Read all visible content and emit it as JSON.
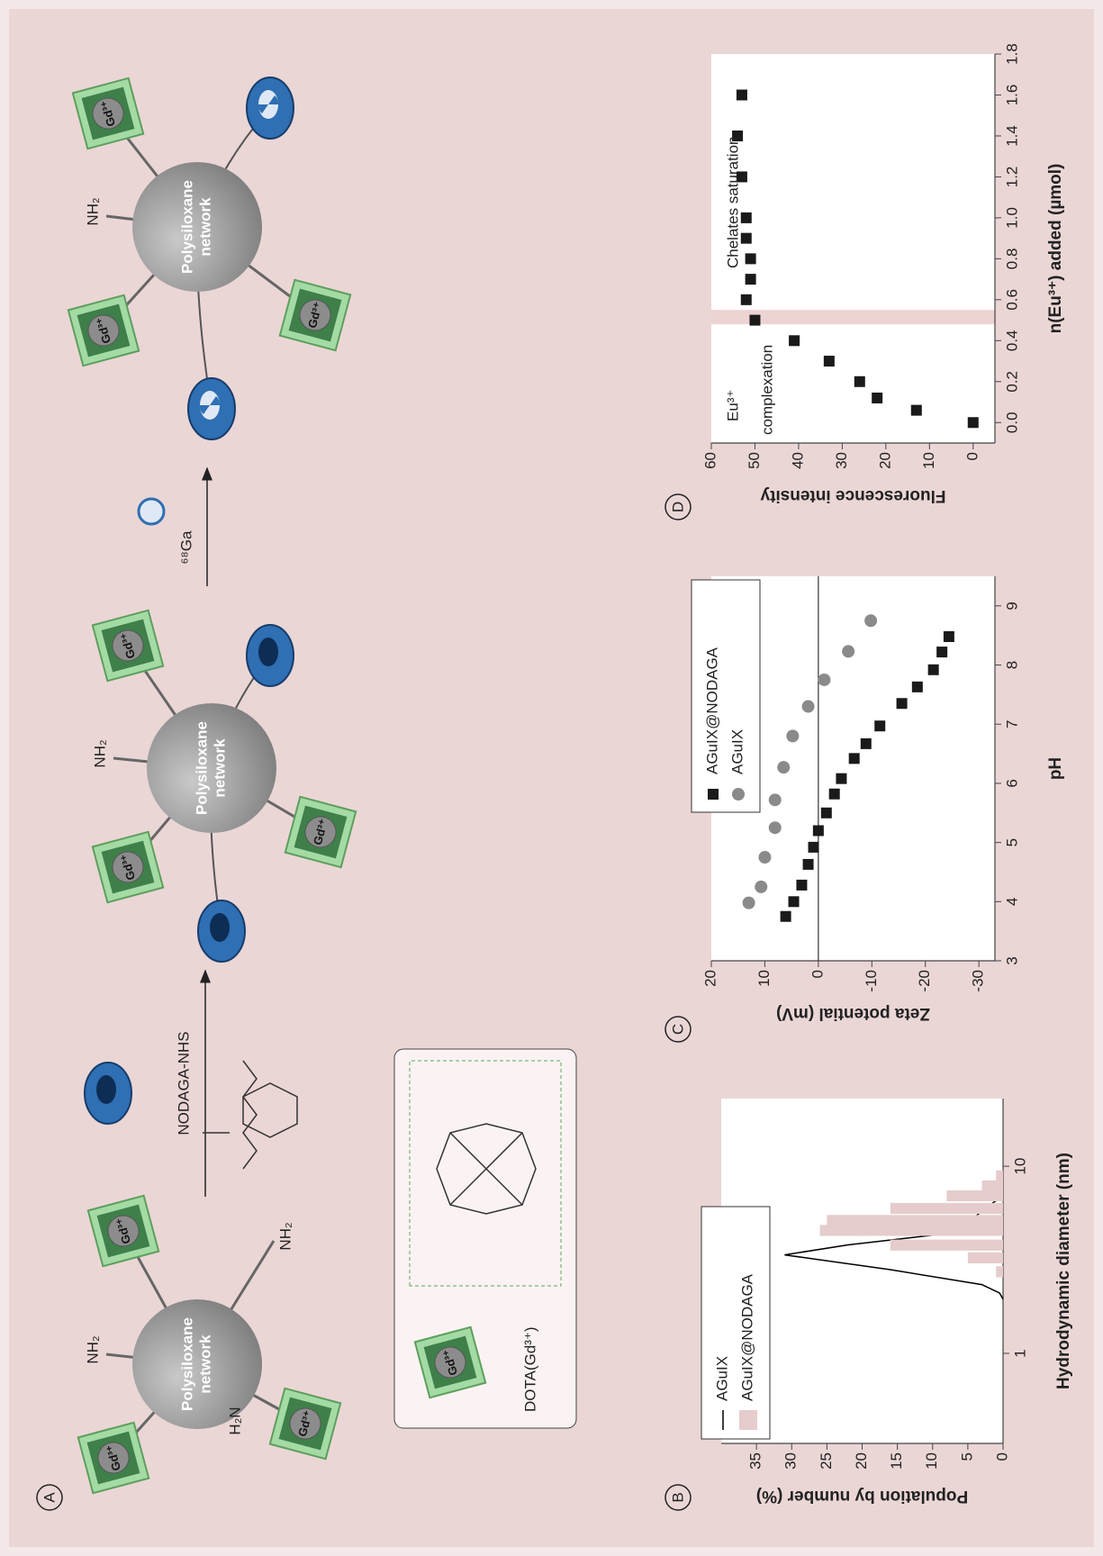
{
  "panel_a": {
    "label": "A",
    "network_lines": [
      "Polysiloxane",
      "network"
    ],
    "gd_label": "Gd³⁺",
    "amine": "NH₂",
    "amine_reversed": "H₂N",
    "reagent": "NODAGA-NHS",
    "isotope": "⁶⁸Ga",
    "legend": "DOTA(Gd³⁺)"
  },
  "chart_data": [
    {
      "type": "combo",
      "panel": "B",
      "xlabel": "Hydrodynamic diameter (nm)",
      "ylabel": "Population by number (%)",
      "log_x": true,
      "xlim": [
        0.33,
        23
      ],
      "xticks": [
        1,
        10
      ],
      "ylim": [
        0,
        40
      ],
      "yticks": [
        0,
        5,
        10,
        15,
        20,
        25,
        30,
        35
      ],
      "legend": "upper left",
      "series": [
        {
          "name": "AGuIX",
          "color": "#000000",
          "style": "line",
          "x": [
            1.95,
            2.1,
            2.33,
            2.8,
            3.36,
            3.8,
            4.28,
            5.0,
            6.16,
            6.95
          ],
          "values": [
            0,
            0.5,
            3,
            16,
            31,
            22,
            10,
            5,
            2,
            0
          ]
        },
        {
          "name": "AGuIX@NODAGA",
          "color": "#e6cccc",
          "style": "bar",
          "x": [
            2.73,
            3.24,
            3.79,
            4.54,
            5.13,
            5.95,
            6.95,
            7.85,
            8.88
          ],
          "values": [
            1,
            5,
            16,
            26,
            25,
            16,
            8,
            3,
            1
          ]
        }
      ]
    },
    {
      "type": "scatter",
      "panel": "C",
      "xlabel": "pH",
      "ylabel": "Zeta potential (mV)",
      "xlim": [
        3,
        9.5
      ],
      "xticks": [
        3,
        4,
        5,
        6,
        7,
        8,
        9
      ],
      "ylim": [
        -33,
        20
      ],
      "yticks": [
        20,
        10,
        0,
        -10,
        -20,
        -30
      ],
      "reference_line": 0,
      "legend": "upper right",
      "series": [
        {
          "name": "AGuIX@NODAGA",
          "color": "#1a1a1a",
          "marker": "square",
          "x": [
            3.75,
            4.0,
            4.28,
            4.63,
            4.92,
            5.2,
            5.5,
            5.82,
            6.08,
            6.42,
            6.67,
            6.97,
            7.35,
            7.63,
            7.92,
            8.22,
            8.48
          ],
          "values": [
            6.1,
            4.6,
            3.1,
            1.9,
            0.9,
            0,
            -1.5,
            -3,
            -4.3,
            -6.7,
            -8.9,
            -11.5,
            -15.6,
            -18.5,
            -21.5,
            -23.1,
            -24.4
          ]
        },
        {
          "name": "AGuIX",
          "color": "#8a8a8a",
          "marker": "circle",
          "x": [
            3.98,
            4.25,
            4.75,
            5.25,
            5.72,
            6.27,
            6.8,
            7.3,
            7.75,
            8.23,
            8.75
          ],
          "values": [
            13,
            10.7,
            10,
            8.1,
            8.1,
            6.5,
            4.8,
            1.9,
            -1.1,
            -5.6,
            -9.8
          ]
        }
      ]
    },
    {
      "type": "scatter",
      "panel": "D",
      "xlabel": "n(Eu³⁺) added (µmol)",
      "ylabel": "Fluorescence intensity",
      "xlim": [
        -0.1,
        1.8
      ],
      "xticks": [
        {
          "value": 0,
          "label": "0.0"
        },
        {
          "value": 0.2,
          "label": "0.2"
        },
        {
          "value": 0.4,
          "label": "0.4"
        },
        {
          "value": 0.6,
          "label": "0.6"
        },
        {
          "value": 0.8,
          "label": "0.8"
        },
        {
          "value": 1,
          "label": "1.0"
        },
        {
          "value": 1.2,
          "label": "1.2"
        },
        {
          "value": 1.4,
          "label": "1.4"
        },
        {
          "value": 1.6,
          "label": "1.6"
        },
        {
          "value": 1.8,
          "label": "1.8"
        }
      ],
      "ylim": [
        -5,
        60
      ],
      "yticks": [
        0,
        10,
        20,
        30,
        40,
        50,
        60
      ],
      "band": [
        0.48,
        0.55
      ],
      "band_color": "#eed3d3",
      "annotations": [
        "Eu³⁺",
        "complexation",
        "Chelates saturation"
      ],
      "series": [
        {
          "color": "#1a1a1a",
          "marker": "square",
          "x": [
            0,
            0.06,
            0.12,
            0.2,
            0.3,
            0.4,
            0.5,
            0.6,
            0.7,
            0.8,
            0.9,
            1.0,
            1.2,
            1.4,
            1.6
          ],
          "values": [
            0,
            13,
            22,
            26,
            33,
            41,
            50,
            52,
            51,
            51,
            52,
            52,
            53,
            54,
            53
          ]
        }
      ]
    }
  ]
}
